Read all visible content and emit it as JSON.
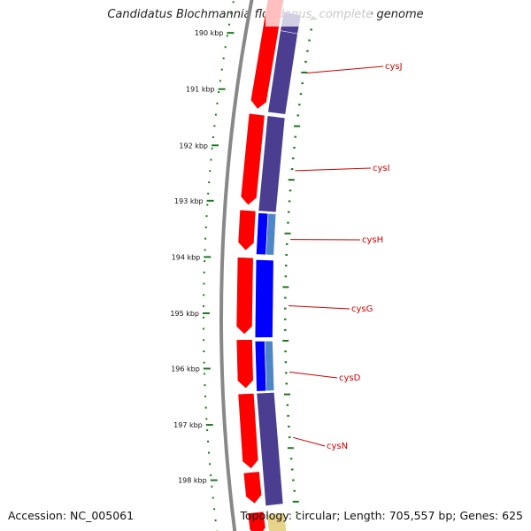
{
  "title": "Candidatus Blochmannia floridanus, complete genome",
  "accession_text": "Accession: NC_005061",
  "summary_text": "Topology: circular; Length: 705,557 bp; Genes: 625",
  "colors": {
    "backbone": "#888888",
    "tick": "#1a7a1a",
    "forward_cds": "#ff0000",
    "reverse_cds_dark": "#4b3d8f",
    "reverse_cds_blue": "#0000ff",
    "reverse_cds_light": "#4f86c6",
    "gene_label": "#cc0000"
  },
  "tick_labels": [
    "190 kbp",
    "191 kbp",
    "192 kbp",
    "193 kbp",
    "194 kbp",
    "195 kbp",
    "196 kbp",
    "197 kbp",
    "198 kbp"
  ],
  "genes": [
    {
      "name": "cysJ"
    },
    {
      "name": "cysI"
    },
    {
      "name": "cysH"
    },
    {
      "name": "cysG"
    },
    {
      "name": "cysD"
    },
    {
      "name": "cysN"
    }
  ]
}
